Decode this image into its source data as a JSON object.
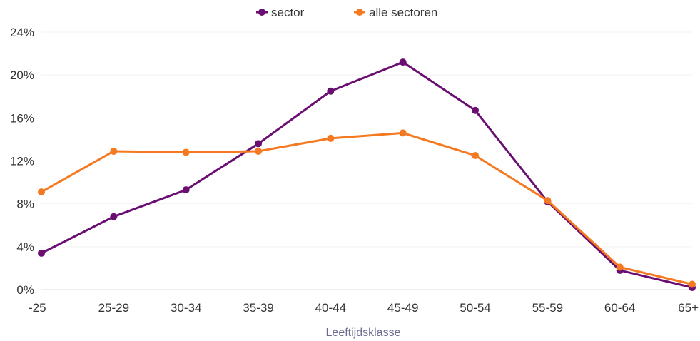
{
  "chart_data": {
    "type": "line",
    "title": "",
    "xlabel": "Leeftijdsklasse",
    "ylabel": "",
    "categories": [
      "-25",
      "25-29",
      "30-34",
      "35-39",
      "40-44",
      "45-49",
      "50-54",
      "55-59",
      "60-64",
      "65+"
    ],
    "yticks": [
      "0%",
      "4%",
      "8%",
      "12%",
      "16%",
      "20%",
      "24%"
    ],
    "ylim": [
      0,
      24
    ],
    "grid": true,
    "legend_position": "top-center",
    "series": [
      {
        "name": "sector",
        "color": "#6b0e72",
        "values": [
          3.4,
          6.8,
          9.3,
          13.6,
          18.5,
          21.2,
          16.7,
          8.2,
          1.8,
          0.2
        ]
      },
      {
        "name": "alle sectoren",
        "color": "#f47920",
        "values": [
          9.1,
          12.9,
          12.8,
          12.9,
          14.1,
          14.6,
          12.5,
          8.3,
          2.1,
          0.5
        ]
      }
    ]
  }
}
